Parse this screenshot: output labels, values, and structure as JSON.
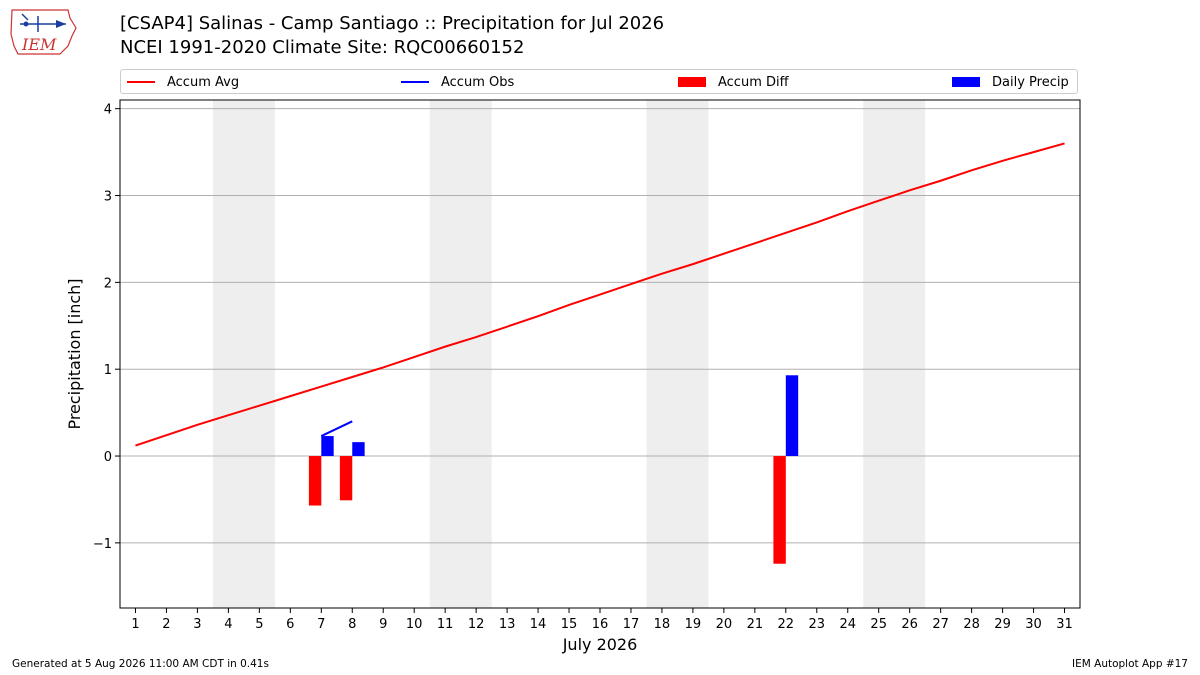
{
  "header": {
    "logo_text": "IEM",
    "title_line1": "[CSAP4] Salinas - Camp Santiago :: Precipitation for Jul 2026",
    "title_line2": "NCEI 1991-2020 Climate Site: RQC00660152"
  },
  "legend": [
    {
      "label": "Accum Avg",
      "kind": "line",
      "color": "#ff0000"
    },
    {
      "label": "Accum Obs",
      "kind": "line",
      "color": "#0000ff"
    },
    {
      "label": "Accum Diff",
      "kind": "box",
      "color": "#ff0000"
    },
    {
      "label": "Daily Precip",
      "kind": "box",
      "color": "#0000ff"
    }
  ],
  "footer": {
    "left": "Generated at 5 Aug 2026 11:00 AM CDT in 0.41s",
    "right": "IEM Autoplot App #17"
  },
  "chart_data": {
    "type": "bar",
    "xlabel": "July 2026",
    "ylabel": "Precipitation [inch]",
    "xlim": [
      0.5,
      31.5
    ],
    "ylim": [
      -1.75,
      4.1
    ],
    "yticks": [
      -1,
      0,
      1,
      2,
      3,
      4
    ],
    "ytick_labels": [
      "−1",
      "0",
      "1",
      "2",
      "3",
      "4"
    ],
    "x": [
      1,
      2,
      3,
      4,
      5,
      6,
      7,
      8,
      9,
      10,
      11,
      12,
      13,
      14,
      15,
      16,
      17,
      18,
      19,
      20,
      21,
      22,
      23,
      24,
      25,
      26,
      27,
      28,
      29,
      30,
      31
    ],
    "grid": "horizontal",
    "weekend_shading": [
      [
        3.5,
        5.5
      ],
      [
        10.5,
        12.5
      ],
      [
        17.5,
        19.5
      ],
      [
        24.5,
        26.5
      ]
    ],
    "weekend_color": "#eeeeee",
    "series": [
      {
        "name": "Accum Avg",
        "kind": "line",
        "color": "#ff0000",
        "x": [
          1,
          2,
          3,
          4,
          5,
          6,
          7,
          8,
          9,
          10,
          11,
          12,
          13,
          14,
          15,
          16,
          17,
          18,
          19,
          20,
          21,
          22,
          23,
          24,
          25,
          26,
          27,
          28,
          29,
          30,
          31
        ],
        "values": [
          0.12,
          0.24,
          0.36,
          0.47,
          0.58,
          0.69,
          0.8,
          0.91,
          1.02,
          1.14,
          1.26,
          1.37,
          1.49,
          1.61,
          1.74,
          1.86,
          1.98,
          2.1,
          2.21,
          2.33,
          2.45,
          2.57,
          2.69,
          2.82,
          2.94,
          3.06,
          3.17,
          3.29,
          3.4,
          3.5,
          3.6
        ]
      },
      {
        "name": "Accum Obs",
        "kind": "line",
        "color": "#0000ff",
        "x": [
          7,
          8
        ],
        "values": [
          0.23,
          0.4
        ]
      },
      {
        "name": "Accum Diff",
        "kind": "bar",
        "color": "#ff0000",
        "offset": -0.2,
        "x": [
          7,
          8,
          22
        ],
        "values": [
          -0.57,
          -0.51,
          -1.24
        ]
      },
      {
        "name": "Daily Precip",
        "kind": "bar",
        "color": "#0000ff",
        "offset": 0.2,
        "x": [
          7,
          8,
          22
        ],
        "values": [
          0.23,
          0.16,
          0.93
        ]
      }
    ]
  }
}
